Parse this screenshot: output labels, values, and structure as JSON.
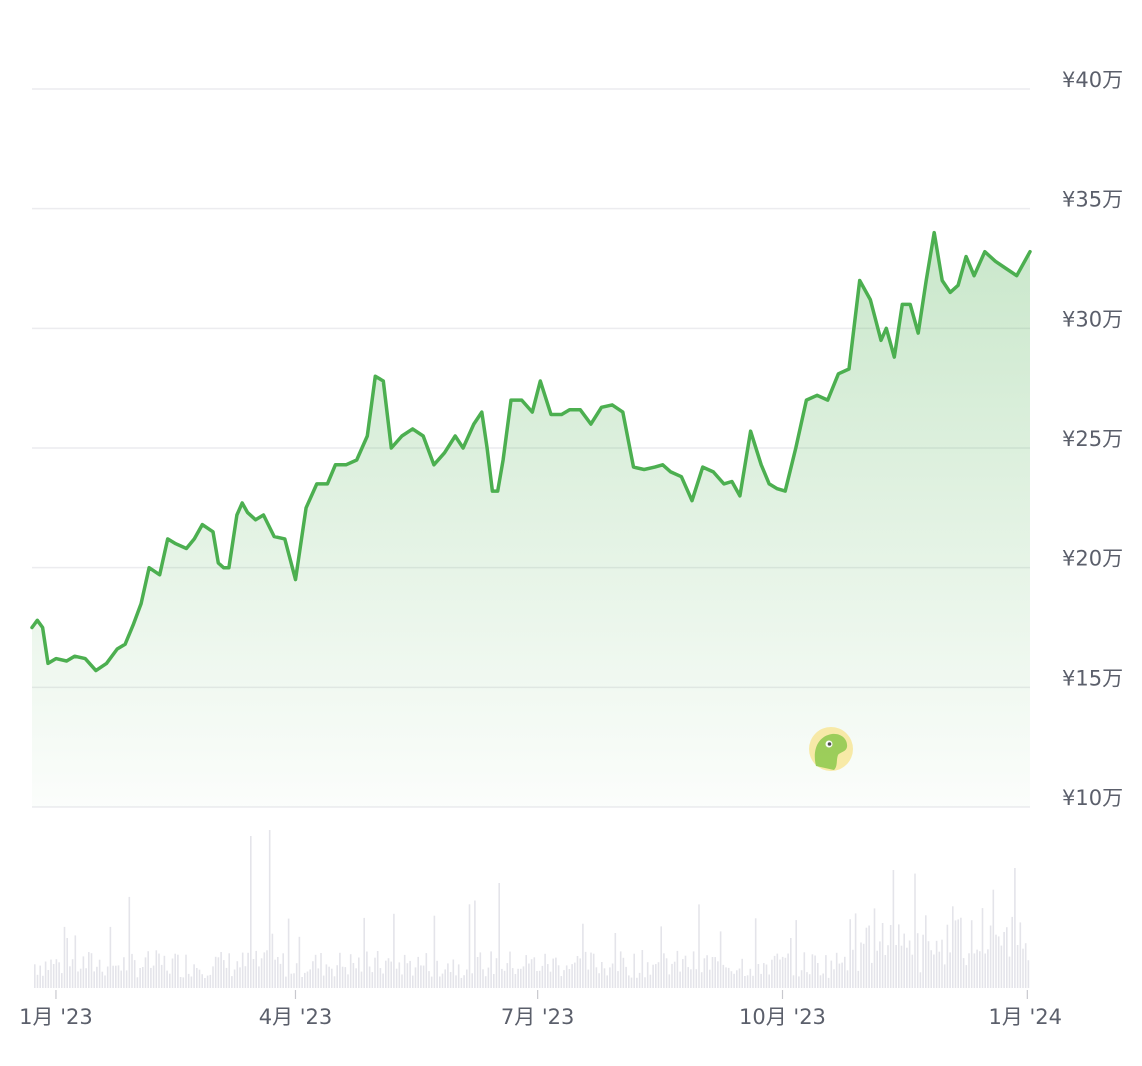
{
  "chart_data": {
    "type": "area",
    "title": "",
    "xlabel": "",
    "ylabel": "",
    "ylim": [
      100000,
      400000
    ],
    "grid": true,
    "legend": "none",
    "y_ticks": [
      {
        "value": 400000,
        "label": "¥40万"
      },
      {
        "value": 350000,
        "label": "¥35万"
      },
      {
        "value": 300000,
        "label": "¥30万"
      },
      {
        "value": 250000,
        "label": "¥25万"
      },
      {
        "value": 200000,
        "label": "¥20万"
      },
      {
        "value": 150000,
        "label": "¥15万"
      },
      {
        "value": 100000,
        "label": "¥10万"
      }
    ],
    "x_ticks": [
      {
        "value": "2023-01-01",
        "label": "1月 '23"
      },
      {
        "value": "2023-04-01",
        "label": "4月 '23"
      },
      {
        "value": "2023-07-01",
        "label": "7月 '23"
      },
      {
        "value": "2023-10-01",
        "label": "10月 '23"
      },
      {
        "value": "2024-01-01",
        "label": "1月 '24"
      }
    ],
    "x_range": [
      "2022-12-23",
      "2024-01-02"
    ],
    "line_color": "#4caf50",
    "fill_color": "#4caf50",
    "volume_color": "#e4e4ea",
    "series": [
      {
        "x": [
          "2022-12-23",
          "2022-12-25",
          "2022-12-27",
          "2022-12-29",
          "2023-01-01",
          "2023-01-05",
          "2023-01-08",
          "2023-01-12",
          "2023-01-16",
          "2023-01-20",
          "2023-01-24",
          "2023-01-27",
          "2023-01-30",
          "2023-02-02",
          "2023-02-05",
          "2023-02-09",
          "2023-02-12",
          "2023-02-15",
          "2023-02-19",
          "2023-02-22",
          "2023-02-25",
          "2023-03-01",
          "2023-03-03",
          "2023-03-05",
          "2023-03-07",
          "2023-03-10",
          "2023-03-12",
          "2023-03-14",
          "2023-03-17",
          "2023-03-20",
          "2023-03-24",
          "2023-03-28",
          "2023-04-01",
          "2023-04-05",
          "2023-04-09",
          "2023-04-13",
          "2023-04-16",
          "2023-04-20",
          "2023-04-24",
          "2023-04-28",
          "2023-05-01",
          "2023-05-04",
          "2023-05-07",
          "2023-05-11",
          "2023-05-15",
          "2023-05-19",
          "2023-05-23",
          "2023-05-27",
          "2023-05-31",
          "2023-06-03",
          "2023-06-07",
          "2023-06-10",
          "2023-06-12",
          "2023-06-14",
          "2023-06-16",
          "2023-06-18",
          "2023-06-21",
          "2023-06-25",
          "2023-06-29",
          "2023-07-02",
          "2023-07-06",
          "2023-07-10",
          "2023-07-13",
          "2023-07-17",
          "2023-07-21",
          "2023-07-25",
          "2023-07-29",
          "2023-08-02",
          "2023-08-06",
          "2023-08-10",
          "2023-08-14",
          "2023-08-17",
          "2023-08-20",
          "2023-08-24",
          "2023-08-28",
          "2023-09-01",
          "2023-09-05",
          "2023-09-09",
          "2023-09-12",
          "2023-09-15",
          "2023-09-19",
          "2023-09-23",
          "2023-09-26",
          "2023-09-29",
          "2023-10-02",
          "2023-10-06",
          "2023-10-10",
          "2023-10-14",
          "2023-10-18",
          "2023-10-22",
          "2023-10-26",
          "2023-10-30",
          "2023-11-03",
          "2023-11-07",
          "2023-11-09",
          "2023-11-12",
          "2023-11-15",
          "2023-11-18",
          "2023-11-21",
          "2023-11-24",
          "2023-11-27",
          "2023-11-30",
          "2023-12-03",
          "2023-12-06",
          "2023-12-09",
          "2023-12-12",
          "2023-12-16",
          "2023-12-20",
          "2023-12-24",
          "2023-12-28",
          "2024-01-02"
        ],
        "values": [
          175000,
          178000,
          175000,
          160000,
          162000,
          161000,
          163000,
          162000,
          157000,
          160000,
          166000,
          168000,
          176000,
          185000,
          200000,
          197000,
          212000,
          210000,
          208000,
          212000,
          218000,
          215000,
          202000,
          200000,
          200000,
          222000,
          227000,
          223000,
          220000,
          222000,
          213000,
          212000,
          195000,
          225000,
          235000,
          235000,
          243000,
          243000,
          245000,
          255000,
          280000,
          278000,
          250000,
          255000,
          258000,
          255000,
          243000,
          248000,
          255000,
          250000,
          260000,
          265000,
          250000,
          232000,
          232000,
          245000,
          270000,
          270000,
          265000,
          278000,
          264000,
          264000,
          266000,
          266000,
          260000,
          267000,
          268000,
          265000,
          242000,
          241000,
          242000,
          243000,
          240000,
          238000,
          228000,
          242000,
          240000,
          235000,
          236000,
          230000,
          257000,
          243000,
          235000,
          233000,
          232000,
          250000,
          270000,
          272000,
          270000,
          281000,
          283000,
          320000,
          312000,
          295000,
          300000,
          288000,
          310000,
          310000,
          298000,
          320000,
          340000,
          320000,
          315000,
          318000,
          330000,
          322000,
          332000,
          328000,
          325000,
          322000,
          332000
        ]
      }
    ]
  }
}
